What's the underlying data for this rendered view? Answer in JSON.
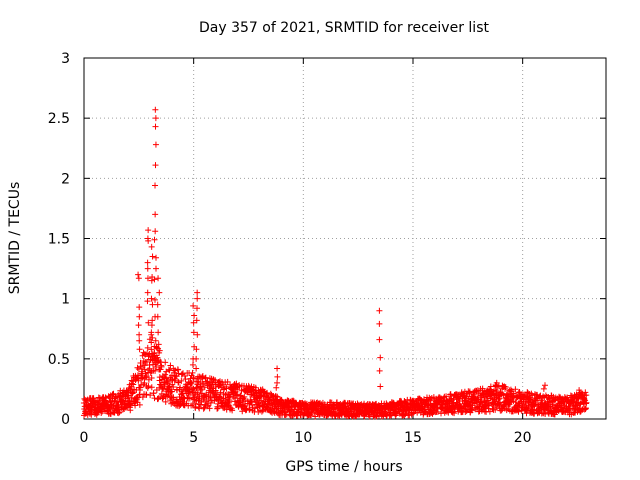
{
  "chart_data": {
    "type": "scatter",
    "title": "Day 357 of 2021, SRMTID for receiver list",
    "xlabel": "GPS time / hours",
    "ylabel": "SRMTID / TECUs",
    "xlim": [
      0,
      23.8
    ],
    "ylim": [
      0,
      3
    ],
    "xticks": [
      0,
      5,
      10,
      15,
      20
    ],
    "yticks": [
      0,
      0.5,
      1,
      1.5,
      2,
      2.5,
      3
    ],
    "xtick_labels": [
      "0",
      "5",
      "10",
      "15",
      "20"
    ],
    "ytick_labels": [
      "0",
      "0.5",
      "1",
      "1.5",
      "2",
      "2.5",
      "3"
    ],
    "grid": true,
    "marker": "+",
    "color": "#ff0000",
    "series": [
      {
        "name": "SRMTID",
        "x_start": 0.0,
        "x_step": 0.02,
        "x_end": 22.9,
        "baseline_profile": {
          "x": [
            0,
            1,
            2,
            2.5,
            3,
            3.5,
            4,
            5,
            6,
            7,
            8,
            9,
            10,
            12,
            13,
            14,
            15,
            16,
            17,
            18,
            19,
            20,
            21,
            22,
            22.9
          ],
          "y": [
            0.1,
            0.11,
            0.16,
            0.28,
            0.45,
            0.35,
            0.28,
            0.24,
            0.2,
            0.18,
            0.16,
            0.1,
            0.08,
            0.08,
            0.07,
            0.08,
            0.1,
            0.11,
            0.13,
            0.15,
            0.18,
            0.14,
            0.12,
            0.11,
            0.14
          ]
        },
        "spikes": [
          {
            "x": 2.5,
            "y": [
              1.2,
              1.17,
              0.93,
              0.85,
              0.78,
              0.7,
              0.65,
              0.58
            ]
          },
          {
            "x": 2.9,
            "y": [
              1.57,
              1.5,
              1.48,
              1.3,
              1.25,
              1.17,
              1.05,
              0.98,
              0.8
            ]
          },
          {
            "x": 3.1,
            "y": [
              1.43,
              1.35,
              1.18,
              1.15,
              1.0,
              0.95,
              0.82,
              0.78,
              0.72,
              0.7
            ]
          },
          {
            "x": 3.25,
            "y": [
              2.57,
              2.5,
              2.43,
              2.28,
              2.11,
              1.94,
              1.7,
              1.56,
              1.49,
              1.34,
              1.25,
              1.16,
              0.99,
              0.85,
              0.65,
              0.55
            ]
          },
          {
            "x": 3.4,
            "y": [
              1.17,
              1.05,
              0.95,
              0.85,
              0.72,
              0.62,
              0.55,
              0.48
            ]
          },
          {
            "x": 5.0,
            "y": [
              0.94,
              0.86,
              0.8,
              0.72,
              0.6,
              0.5,
              0.45
            ]
          },
          {
            "x": 5.15,
            "y": [
              1.05,
              1.0,
              0.92,
              0.82,
              0.7,
              0.58,
              0.5,
              0.42
            ]
          },
          {
            "x": 8.8,
            "y": [
              0.42,
              0.35,
              0.3,
              0.26
            ]
          },
          {
            "x": 13.5,
            "y": [
              0.9,
              0.79,
              0.66,
              0.51,
              0.4,
              0.27
            ]
          },
          {
            "x": 18.8,
            "y": [
              0.3,
              0.27,
              0.24
            ]
          },
          {
            "x": 21.0,
            "y": [
              0.28,
              0.25
            ]
          },
          {
            "x": 22.6,
            "y": [
              0.24,
              0.22
            ]
          }
        ]
      }
    ]
  }
}
